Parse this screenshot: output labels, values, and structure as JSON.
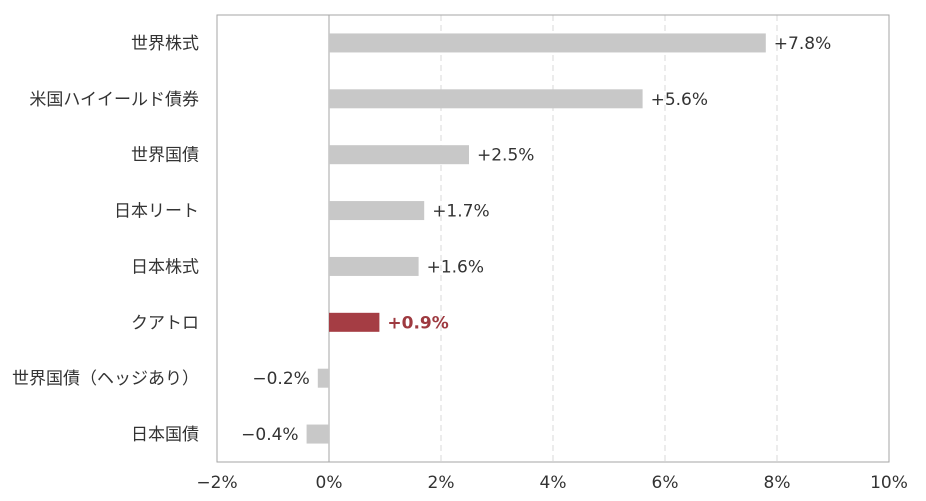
{
  "chart_data": {
    "type": "bar",
    "orientation": "horizontal",
    "categories": [
      "世界株式",
      "米国ハイイールド債券",
      "世界国債",
      "日本リート",
      "日本株式",
      "クアトロ",
      "世界国債（ヘッジあり）",
      "日本国債"
    ],
    "values": [
      7.8,
      5.6,
      2.5,
      1.7,
      1.6,
      0.9,
      -0.2,
      -0.4
    ],
    "value_labels": [
      "+7.8%",
      "+5.6%",
      "+2.5%",
      "+1.7%",
      "+1.6%",
      "+0.9%",
      "−0.2%",
      "−0.4%"
    ],
    "highlight_index": 5,
    "xlim": [
      -2,
      10
    ],
    "xticks": [
      -2,
      0,
      2,
      4,
      6,
      8,
      10
    ],
    "xtick_labels": [
      "−2%",
      "0%",
      "2%",
      "4%",
      "6%",
      "8%",
      "10%"
    ],
    "grid": "vertical-dashed",
    "colors": {
      "bar": "#c8c8c8",
      "highlight": "#a53d44",
      "grid": "#d9d9d9"
    }
  }
}
